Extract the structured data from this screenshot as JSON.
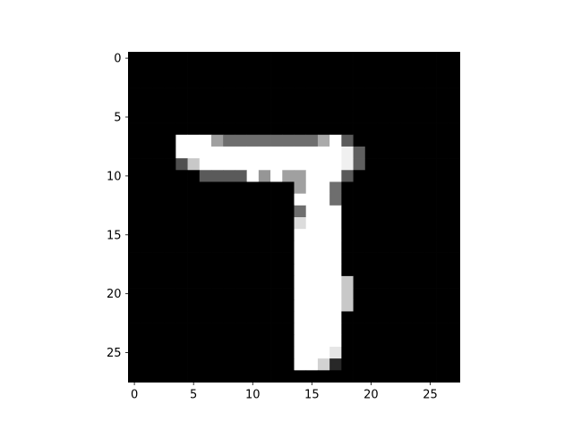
{
  "chart_data": {
    "type": "heatmap",
    "colormap": "gray",
    "value_range": [
      0,
      255
    ],
    "rows": 28,
    "cols": 28,
    "x_ticks": [
      0,
      5,
      10,
      15,
      20,
      25
    ],
    "y_ticks": [
      0,
      5,
      10,
      15,
      20,
      25
    ],
    "x_tick_labels": [
      "0",
      "5",
      "10",
      "15",
      "20",
      "25"
    ],
    "y_tick_labels": [
      "0",
      "5",
      "10",
      "15",
      "20",
      "25"
    ],
    "xlim": [
      -0.5,
      27.5
    ],
    "ylim": [
      27.5,
      -0.5
    ],
    "grid": false,
    "nonzero_cells": [
      [
        7,
        4,
        255
      ],
      [
        7,
        5,
        255
      ],
      [
        7,
        6,
        255
      ],
      [
        7,
        7,
        160
      ],
      [
        7,
        8,
        110
      ],
      [
        7,
        9,
        110
      ],
      [
        7,
        10,
        110
      ],
      [
        7,
        11,
        110
      ],
      [
        7,
        12,
        110
      ],
      [
        7,
        13,
        110
      ],
      [
        7,
        14,
        110
      ],
      [
        7,
        15,
        110
      ],
      [
        7,
        16,
        170
      ],
      [
        7,
        17,
        255
      ],
      [
        7,
        18,
        90
      ],
      [
        8,
        4,
        255
      ],
      [
        8,
        5,
        255
      ],
      [
        8,
        6,
        255
      ],
      [
        8,
        7,
        255
      ],
      [
        8,
        8,
        255
      ],
      [
        8,
        9,
        255
      ],
      [
        8,
        10,
        255
      ],
      [
        8,
        11,
        255
      ],
      [
        8,
        12,
        255
      ],
      [
        8,
        13,
        255
      ],
      [
        8,
        14,
        255
      ],
      [
        8,
        15,
        255
      ],
      [
        8,
        16,
        255
      ],
      [
        8,
        17,
        255
      ],
      [
        8,
        18,
        240
      ],
      [
        8,
        19,
        95
      ],
      [
        9,
        4,
        80
      ],
      [
        9,
        5,
        200
      ],
      [
        9,
        6,
        255
      ],
      [
        9,
        7,
        255
      ],
      [
        9,
        8,
        255
      ],
      [
        9,
        9,
        255
      ],
      [
        9,
        10,
        255
      ],
      [
        9,
        11,
        255
      ],
      [
        9,
        12,
        255
      ],
      [
        9,
        13,
        255
      ],
      [
        9,
        14,
        255
      ],
      [
        9,
        15,
        255
      ],
      [
        9,
        16,
        255
      ],
      [
        9,
        17,
        255
      ],
      [
        9,
        18,
        240
      ],
      [
        9,
        19,
        95
      ],
      [
        10,
        6,
        90
      ],
      [
        10,
        7,
        90
      ],
      [
        10,
        8,
        90
      ],
      [
        10,
        9,
        90
      ],
      [
        10,
        10,
        255
      ],
      [
        10,
        11,
        150
      ],
      [
        10,
        12,
        255
      ],
      [
        10,
        13,
        160
      ],
      [
        10,
        14,
        160
      ],
      [
        10,
        15,
        255
      ],
      [
        10,
        16,
        255
      ],
      [
        10,
        17,
        255
      ],
      [
        10,
        18,
        90
      ],
      [
        11,
        14,
        160
      ],
      [
        11,
        15,
        255
      ],
      [
        11,
        16,
        255
      ],
      [
        11,
        17,
        110
      ],
      [
        12,
        14,
        255
      ],
      [
        12,
        15,
        255
      ],
      [
        12,
        16,
        255
      ],
      [
        12,
        17,
        110
      ],
      [
        13,
        14,
        110
      ],
      [
        13,
        15,
        255
      ],
      [
        13,
        16,
        255
      ],
      [
        13,
        17,
        255
      ],
      [
        14,
        14,
        220
      ],
      [
        14,
        15,
        255
      ],
      [
        14,
        16,
        255
      ],
      [
        14,
        17,
        255
      ],
      [
        15,
        14,
        255
      ],
      [
        15,
        15,
        255
      ],
      [
        15,
        16,
        255
      ],
      [
        15,
        17,
        255
      ],
      [
        16,
        14,
        255
      ],
      [
        16,
        15,
        255
      ],
      [
        16,
        16,
        255
      ],
      [
        16,
        17,
        255
      ],
      [
        17,
        14,
        255
      ],
      [
        17,
        15,
        255
      ],
      [
        17,
        16,
        255
      ],
      [
        17,
        17,
        255
      ],
      [
        18,
        14,
        255
      ],
      [
        18,
        15,
        255
      ],
      [
        18,
        16,
        255
      ],
      [
        18,
        17,
        255
      ],
      [
        19,
        14,
        255
      ],
      [
        19,
        15,
        255
      ],
      [
        19,
        16,
        255
      ],
      [
        19,
        17,
        255
      ],
      [
        19,
        18,
        200
      ],
      [
        20,
        14,
        255
      ],
      [
        20,
        15,
        255
      ],
      [
        20,
        16,
        255
      ],
      [
        20,
        17,
        255
      ],
      [
        20,
        18,
        200
      ],
      [
        21,
        14,
        255
      ],
      [
        21,
        15,
        255
      ],
      [
        21,
        16,
        255
      ],
      [
        21,
        17,
        255
      ],
      [
        21,
        18,
        200
      ],
      [
        22,
        14,
        255
      ],
      [
        22,
        15,
        255
      ],
      [
        22,
        16,
        255
      ],
      [
        22,
        17,
        255
      ],
      [
        23,
        14,
        255
      ],
      [
        23,
        15,
        255
      ],
      [
        23,
        16,
        255
      ],
      [
        23,
        17,
        255
      ],
      [
        24,
        14,
        255
      ],
      [
        24,
        15,
        255
      ],
      [
        24,
        16,
        255
      ],
      [
        24,
        17,
        255
      ],
      [
        25,
        14,
        255
      ],
      [
        25,
        15,
        255
      ],
      [
        25,
        16,
        255
      ],
      [
        25,
        17,
        230
      ],
      [
        26,
        14,
        255
      ],
      [
        26,
        15,
        255
      ],
      [
        26,
        16,
        210
      ],
      [
        26,
        17,
        40
      ]
    ]
  }
}
